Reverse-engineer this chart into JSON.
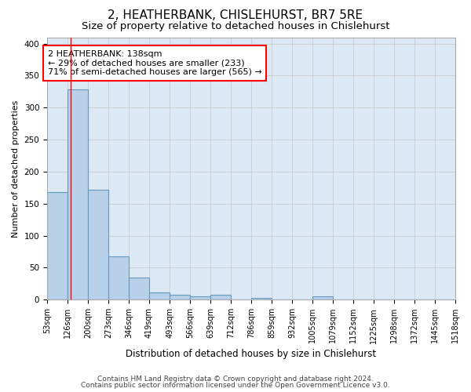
{
  "title": "2, HEATHERBANK, CHISLEHURST, BR7 5RE",
  "subtitle": "Size of property relative to detached houses in Chislehurst",
  "xlabel": "Distribution of detached houses by size in Chislehurst",
  "ylabel": "Number of detached properties",
  "footer_line1": "Contains HM Land Registry data © Crown copyright and database right 2024.",
  "footer_line2": "Contains public sector information licensed under the Open Government Licence v3.0.",
  "bin_edges": [
    53,
    126,
    200,
    273,
    346,
    419,
    493,
    566,
    639,
    712,
    786,
    859,
    932,
    1005,
    1079,
    1152,
    1225,
    1298,
    1372,
    1445,
    1518
  ],
  "bar_heights": [
    168,
    329,
    172,
    68,
    34,
    11,
    8,
    5,
    8,
    0,
    3,
    0,
    0,
    5,
    0,
    0,
    0,
    0,
    0,
    0
  ],
  "bar_color": "#b8d0e8",
  "bar_edge_color": "#6699bb",
  "tick_labels": [
    "53sqm",
    "126sqm",
    "200sqm",
    "273sqm",
    "346sqm",
    "419sqm",
    "493sqm",
    "566sqm",
    "639sqm",
    "712sqm",
    "786sqm",
    "859sqm",
    "932sqm",
    "1005sqm",
    "1079sqm",
    "1152sqm",
    "1225sqm",
    "1298sqm",
    "1372sqm",
    "1445sqm",
    "1518sqm"
  ],
  "property_line_x": 138,
  "property_label": "2 HEATHERBANK: 138sqm",
  "annotation_line1": "← 29% of detached houses are smaller (233)",
  "annotation_line2": "71% of semi-detached houses are larger (565) →",
  "ylim": [
    0,
    410
  ],
  "grid_color": "#cccccc",
  "fig_bg_color": "#ffffff",
  "plot_bg_color": "#dce8f4",
  "title_fontsize": 11,
  "subtitle_fontsize": 9.5,
  "xlabel_fontsize": 8.5,
  "ylabel_fontsize": 8,
  "tick_fontsize": 7,
  "annotation_fontsize": 8,
  "footer_fontsize": 6.5
}
